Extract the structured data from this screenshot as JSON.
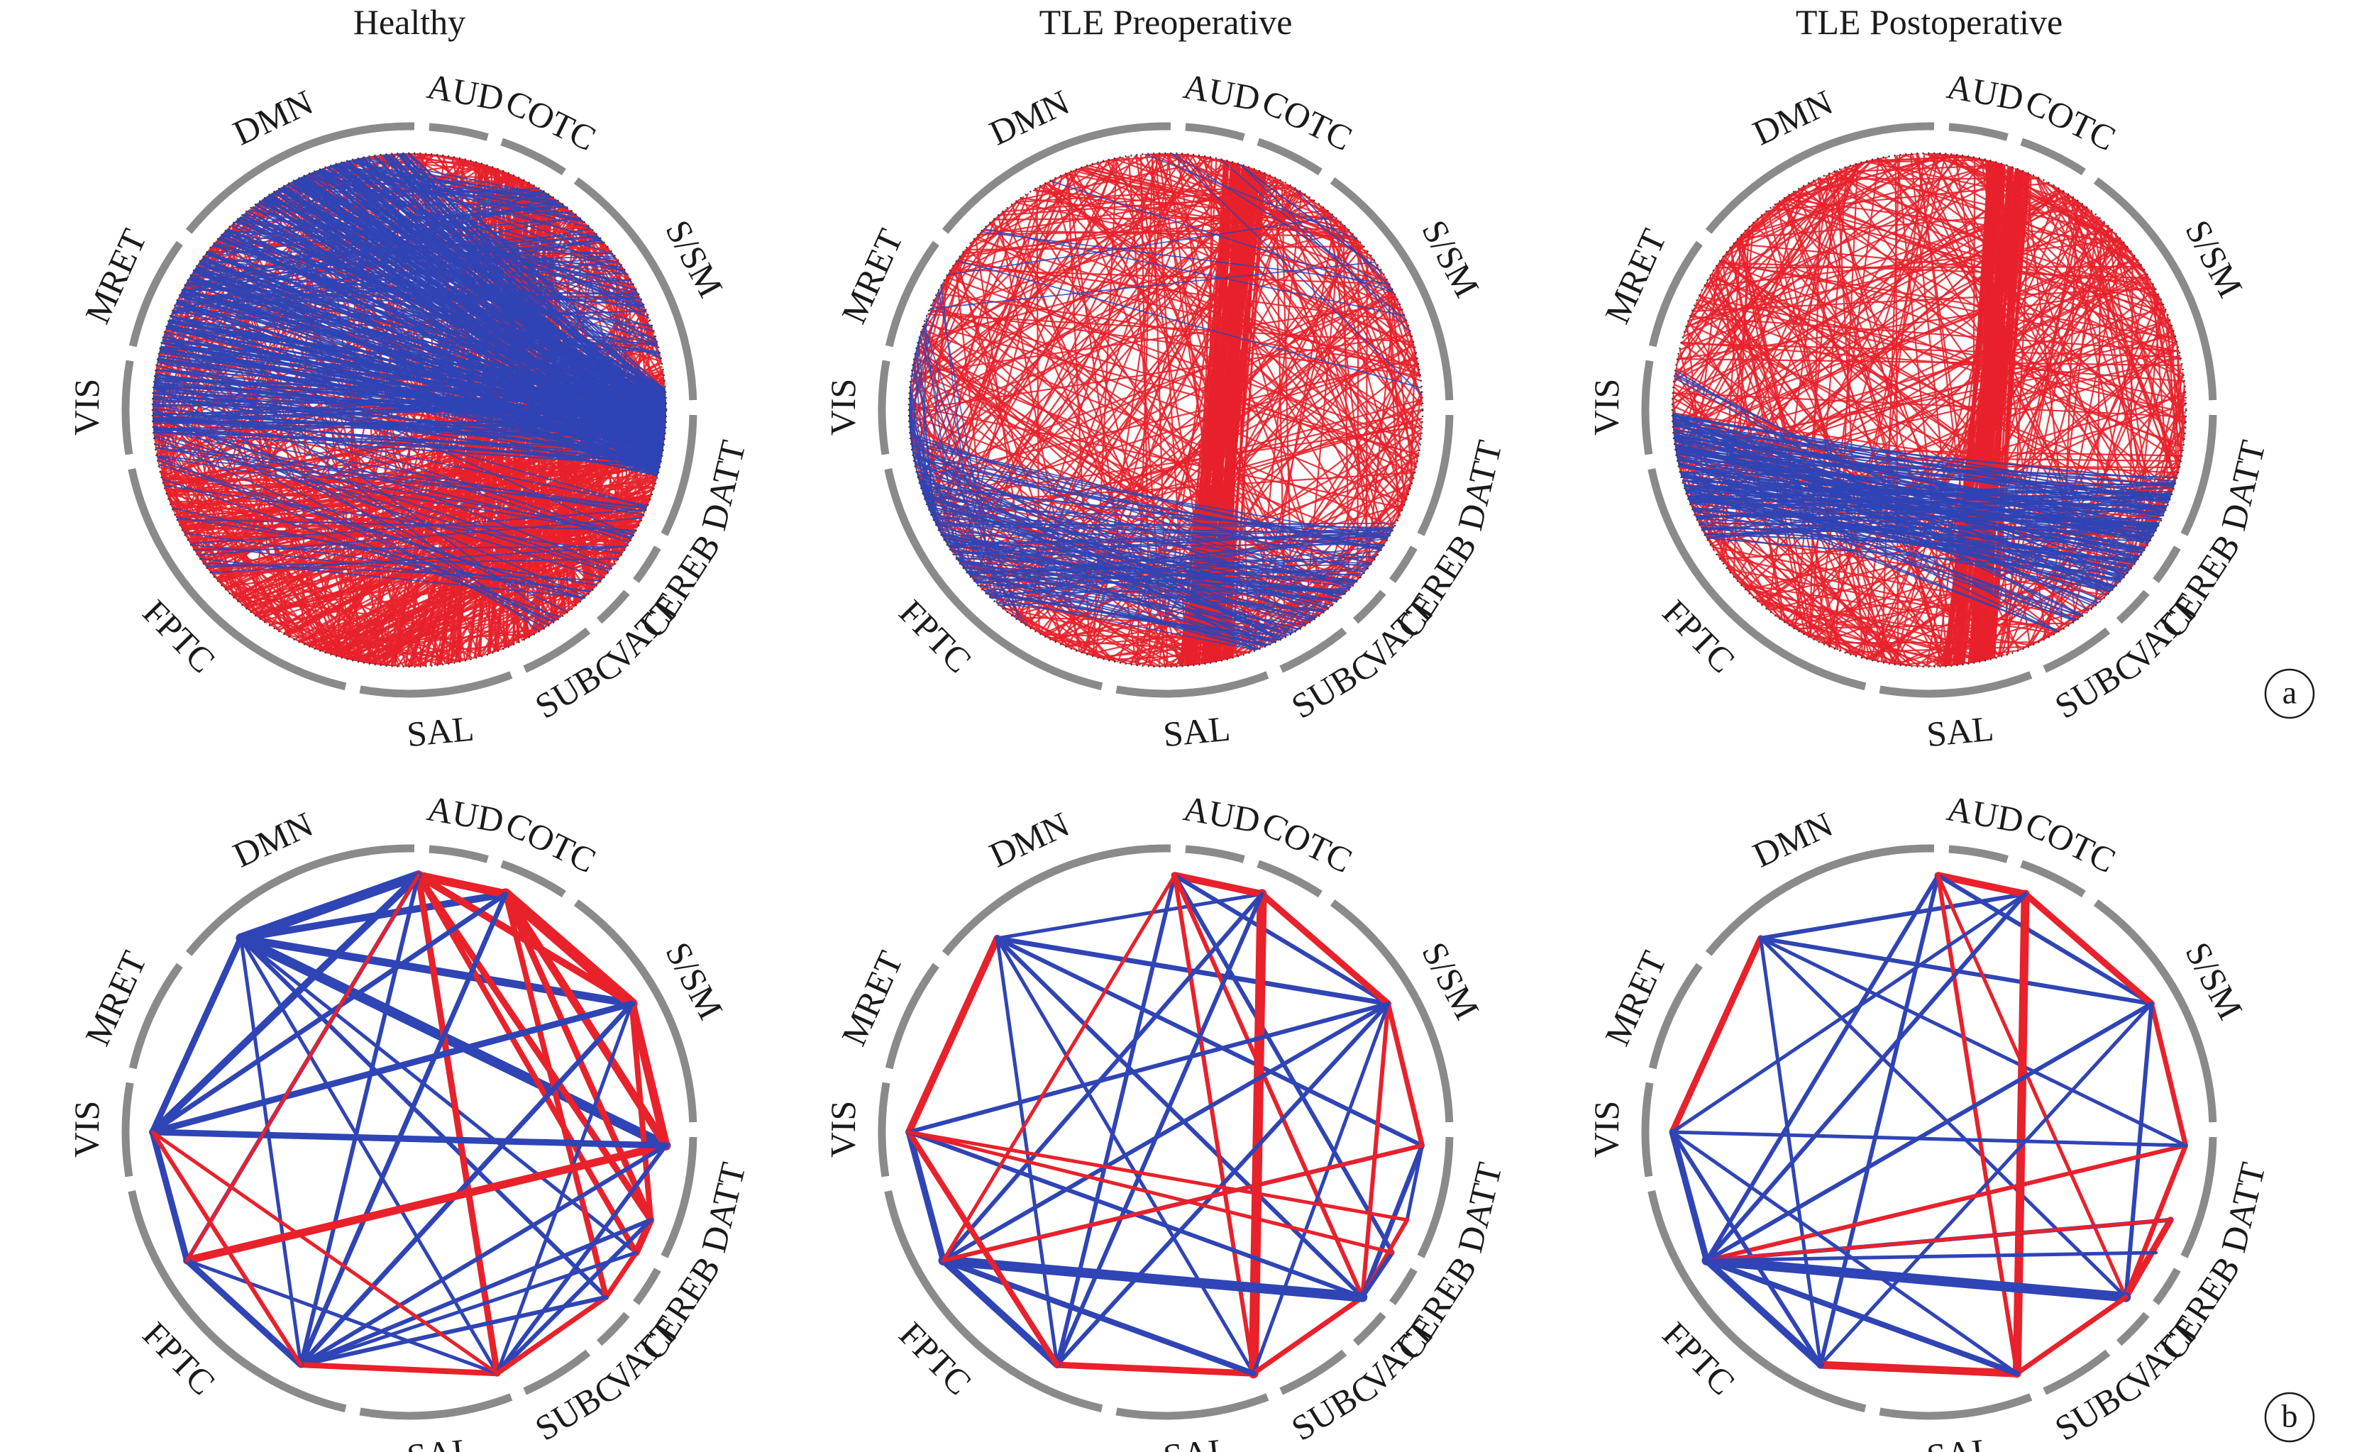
{
  "column_titles": [
    "Healthy",
    "TLE Preoperative",
    "TLE Postoperative"
  ],
  "networks": [
    "AUD",
    "COTC",
    "S/SM",
    "DATT",
    "CEREB",
    "VATT",
    "SUBC",
    "SAL",
    "FPTC",
    "VIS",
    "MRET",
    "DMN"
  ],
  "panel_tags": {
    "a": "a",
    "b": "b"
  },
  "colors": {
    "positive": "#e8212b",
    "negative": "#2f44b5",
    "ring": "#8a8a8a"
  },
  "ring_segments": [
    {
      "network": "AUD",
      "start": 274,
      "end": 286
    },
    {
      "network": "COTC",
      "start": 289,
      "end": 303
    },
    {
      "network": "S/SM",
      "start": 306,
      "end": 358
    },
    {
      "network": "DATT",
      "start": 361,
      "end": 386
    },
    {
      "network": "CEREB",
      "start": 389,
      "end": 397
    },
    {
      "network": "VATT",
      "start": 400,
      "end": 408
    },
    {
      "network": "SUBC",
      "start": 411,
      "end": 426
    },
    {
      "network": "SAL",
      "start": 429,
      "end": 460
    },
    {
      "network": "FPTC",
      "start": 463,
      "end": 528
    },
    {
      "network": "VIS",
      "start": 531,
      "end": 550
    },
    {
      "network": "MRET",
      "start": 553,
      "end": 576
    },
    {
      "network": "DMN",
      "start": 579,
      "end": 631
    }
  ],
  "node_angles": {
    "AUD": 272,
    "COTC": 292,
    "S/SM": 330,
    "DATT": 3,
    "CEREB": 20,
    "VATT": 28,
    "SUBC": 40,
    "SAL": 70,
    "FPTC": 115,
    "VIS": 150,
    "MRET": 180,
    "DMN": 229
  },
  "panel_b_edges": {
    "Healthy": [
      [
        "DMN",
        "AUD",
        "n",
        14
      ],
      [
        "DMN",
        "COTC",
        "n",
        10
      ],
      [
        "DMN",
        "S/SM",
        "n",
        11
      ],
      [
        "DMN",
        "DATT",
        "n",
        14
      ],
      [
        "DMN",
        "MRET",
        "n",
        9
      ],
      [
        "DMN",
        "SUBC",
        "n",
        6
      ],
      [
        "DMN",
        "FPTC",
        "n",
        5
      ],
      [
        "DMN",
        "SAL",
        "n",
        5
      ],
      [
        "DMN",
        "VATT",
        "n",
        5
      ],
      [
        "AUD",
        "COTC",
        "p",
        12
      ],
      [
        "AUD",
        "S/SM",
        "p",
        10
      ],
      [
        "AUD",
        "CEREB",
        "p",
        9
      ],
      [
        "AUD",
        "VATT",
        "p",
        8
      ],
      [
        "AUD",
        "SAL",
        "p",
        9
      ],
      [
        "AUD",
        "MRET",
        "n",
        10
      ],
      [
        "AUD",
        "FPTC",
        "n",
        6
      ],
      [
        "AUD",
        "VIS",
        "n",
        6
      ],
      [
        "COTC",
        "S/SM",
        "p",
        16
      ],
      [
        "COTC",
        "DATT",
        "p",
        11
      ],
      [
        "COTC",
        "CEREB",
        "p",
        9
      ],
      [
        "COTC",
        "SUBC",
        "p",
        8
      ],
      [
        "COTC",
        "FPTC",
        "n",
        7
      ],
      [
        "COTC",
        "MRET",
        "n",
        7
      ],
      [
        "S/SM",
        "DATT",
        "p",
        12
      ],
      [
        "S/SM",
        "CEREB",
        "p",
        8
      ],
      [
        "S/SM",
        "MRET",
        "n",
        9
      ],
      [
        "S/SM",
        "FPTC",
        "n",
        7
      ],
      [
        "S/SM",
        "SAL",
        "n",
        5
      ],
      [
        "DATT",
        "VIS",
        "p",
        11
      ],
      [
        "DATT",
        "MRET",
        "n",
        9
      ],
      [
        "DATT",
        "FPTC",
        "n",
        6
      ],
      [
        "DATT",
        "SAL",
        "n",
        6
      ],
      [
        "CEREB",
        "VATT",
        "p",
        10
      ],
      [
        "CEREB",
        "SAL",
        "n",
        6
      ],
      [
        "CEREB",
        "FPTC",
        "n",
        6
      ],
      [
        "VATT",
        "SUBC",
        "p",
        7
      ],
      [
        "VATT",
        "FPTC",
        "n",
        5
      ],
      [
        "SUBC",
        "SAL",
        "p",
        7
      ],
      [
        "SUBC",
        "FPTC",
        "n",
        6
      ],
      [
        "SAL",
        "FPTC",
        "p",
        8
      ],
      [
        "SAL",
        "VIS",
        "n",
        5
      ],
      [
        "FPTC",
        "VIS",
        "n",
        9
      ],
      [
        "MRET",
        "VIS",
        "n",
        9
      ],
      [
        "MRET",
        "FPTC",
        "p",
        6
      ],
      [
        "MRET",
        "DATT",
        "n",
        8
      ],
      [
        "VIS",
        "AUD",
        "p",
        5
      ],
      [
        "MRET",
        "SAL",
        "p",
        5
      ]
    ],
    "TLE Preoperative": [
      [
        "DMN",
        "MRET",
        "p",
        10
      ],
      [
        "DMN",
        "S/SM",
        "n",
        7
      ],
      [
        "DMN",
        "DATT",
        "n",
        6
      ],
      [
        "DMN",
        "SUBC",
        "n",
        6
      ],
      [
        "DMN",
        "SAL",
        "n",
        5
      ],
      [
        "DMN",
        "FPTC",
        "n",
        5
      ],
      [
        "DMN",
        "COTC",
        "n",
        5
      ],
      [
        "AUD",
        "COTC",
        "p",
        10
      ],
      [
        "AUD",
        "S/SM",
        "n",
        6
      ],
      [
        "AUD",
        "VATT",
        "n",
        6
      ],
      [
        "AUD",
        "FPTC",
        "n",
        6
      ],
      [
        "AUD",
        "SAL",
        "p",
        6
      ],
      [
        "AUD",
        "SUBC",
        "p",
        6
      ],
      [
        "COTC",
        "S/SM",
        "p",
        9
      ],
      [
        "COTC",
        "SAL",
        "p",
        14
      ],
      [
        "COTC",
        "VIS",
        "n",
        6
      ],
      [
        "COTC",
        "FPTC",
        "n",
        6
      ],
      [
        "S/SM",
        "DATT",
        "p",
        7
      ],
      [
        "S/SM",
        "SUBC",
        "p",
        6
      ],
      [
        "S/SM",
        "MRET",
        "n",
        6
      ],
      [
        "S/SM",
        "VIS",
        "n",
        6
      ],
      [
        "S/SM",
        "FPTC",
        "n",
        6
      ],
      [
        "S/SM",
        "SAL",
        "n",
        5
      ],
      [
        "DATT",
        "SUBC",
        "n",
        7
      ],
      [
        "DATT",
        "VIS",
        "n",
        6
      ],
      [
        "DATT",
        "CEREB",
        "n",
        5
      ],
      [
        "CEREB",
        "SUBC",
        "p",
        6
      ],
      [
        "VATT",
        "SUBC",
        "n",
        6
      ],
      [
        "SUBC",
        "SAL",
        "p",
        7
      ],
      [
        "SAL",
        "FPTC",
        "p",
        9
      ],
      [
        "FPTC",
        "VIS",
        "n",
        10
      ],
      [
        "VIS",
        "SUBC",
        "n",
        14
      ],
      [
        "VIS",
        "SAL",
        "n",
        8
      ],
      [
        "VIS",
        "MRET",
        "n",
        9
      ],
      [
        "MRET",
        "FPTC",
        "p",
        8
      ],
      [
        "MRET",
        "SUBC",
        "n",
        6
      ],
      [
        "MRET",
        "CEREB",
        "p",
        5
      ],
      [
        "VIS",
        "DATT",
        "p",
        6
      ],
      [
        "VIS",
        "AUD",
        "p",
        5
      ],
      [
        "MRET",
        "VATT",
        "p",
        5
      ]
    ],
    "TLE Postoperative": [
      [
        "DMN",
        "MRET",
        "p",
        9
      ],
      [
        "DMN",
        "COTC",
        "n",
        6
      ],
      [
        "DMN",
        "S/SM",
        "n",
        6
      ],
      [
        "DMN",
        "DATT",
        "n",
        5
      ],
      [
        "DMN",
        "SUBC",
        "n",
        5
      ],
      [
        "DMN",
        "FPTC",
        "n",
        5
      ],
      [
        "AUD",
        "COTC",
        "p",
        10
      ],
      [
        "AUD",
        "S/SM",
        "n",
        6
      ],
      [
        "AUD",
        "VIS",
        "n",
        6
      ],
      [
        "AUD",
        "FPTC",
        "n",
        6
      ],
      [
        "AUD",
        "SAL",
        "p",
        6
      ],
      [
        "AUD",
        "SUBC",
        "p",
        5
      ],
      [
        "COTC",
        "S/SM",
        "p",
        9
      ],
      [
        "COTC",
        "SAL",
        "p",
        12
      ],
      [
        "COTC",
        "VIS",
        "n",
        6
      ],
      [
        "COTC",
        "MRET",
        "n",
        5
      ],
      [
        "S/SM",
        "DATT",
        "p",
        7
      ],
      [
        "S/SM",
        "SUBC",
        "n",
        6
      ],
      [
        "S/SM",
        "VIS",
        "n",
        6
      ],
      [
        "S/SM",
        "FPTC",
        "n",
        5
      ],
      [
        "DATT",
        "SUBC",
        "p",
        7
      ],
      [
        "DATT",
        "VIS",
        "p",
        6
      ],
      [
        "DATT",
        "MRET",
        "n",
        5
      ],
      [
        "CEREB",
        "SUBC",
        "p",
        9
      ],
      [
        "CEREB",
        "VIS",
        "n",
        6
      ],
      [
        "SUBC",
        "VIS",
        "n",
        14
      ],
      [
        "SUBC",
        "SAL",
        "p",
        7
      ],
      [
        "SAL",
        "FPTC",
        "p",
        11
      ],
      [
        "SAL",
        "VIS",
        "n",
        8
      ],
      [
        "FPTC",
        "VIS",
        "n",
        10
      ],
      [
        "MRET",
        "VIS",
        "n",
        9
      ],
      [
        "MRET",
        "FPTC",
        "n",
        6
      ],
      [
        "VIS",
        "CEREB",
        "p",
        5
      ],
      [
        "VATT",
        "VIS",
        "n",
        5
      ],
      [
        "MRET",
        "SAL",
        "n",
        5
      ]
    ]
  }
}
